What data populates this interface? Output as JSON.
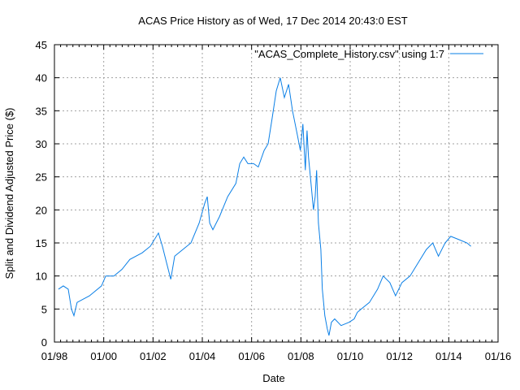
{
  "chart_data": {
    "type": "line",
    "title": "ACAS Price History as of Wed, 17 Dec 2014 20:43:0 EST",
    "xlabel": "Date",
    "ylabel": "Split and Dividend Adjusted Price ($)",
    "xlim": [
      1998,
      2016
    ],
    "ylim": [
      0,
      45
    ],
    "grid": true,
    "legend_position": "top-right",
    "x_ticks": [
      {
        "value": 1998,
        "label": "01/98"
      },
      {
        "value": 2000,
        "label": "01/00"
      },
      {
        "value": 2002,
        "label": "01/02"
      },
      {
        "value": 2004,
        "label": "01/04"
      },
      {
        "value": 2006,
        "label": "01/06"
      },
      {
        "value": 2008,
        "label": "01/08"
      },
      {
        "value": 2010,
        "label": "01/10"
      },
      {
        "value": 2012,
        "label": "01/12"
      },
      {
        "value": 2014,
        "label": "01/14"
      },
      {
        "value": 2016,
        "label": "01/16"
      }
    ],
    "y_ticks": [
      {
        "value": 0,
        "label": "0"
      },
      {
        "value": 5,
        "label": "5"
      },
      {
        "value": 10,
        "label": "10"
      },
      {
        "value": 15,
        "label": "15"
      },
      {
        "value": 20,
        "label": "20"
      },
      {
        "value": 25,
        "label": "25"
      },
      {
        "value": 30,
        "label": "30"
      },
      {
        "value": 35,
        "label": "35"
      },
      {
        "value": 40,
        "label": "40"
      },
      {
        "value": 45,
        "label": "45"
      }
    ],
    "series": [
      {
        "name": "\"ACAS_Complete_History.csv\" using 1:7",
        "color": "#0a7fe6",
        "x": [
          1998.16,
          1998.36,
          1998.56,
          1998.69,
          1998.79,
          1998.92,
          1999.42,
          1999.91,
          2000.08,
          2000.41,
          2000.74,
          2001.06,
          2001.56,
          2001.89,
          2002.22,
          2002.38,
          2002.55,
          2002.72,
          2002.88,
          2003.21,
          2003.54,
          2003.87,
          2004.1,
          2004.2,
          2004.3,
          2004.43,
          2004.7,
          2005.03,
          2005.36,
          2005.52,
          2005.68,
          2005.85,
          2006.08,
          2006.27,
          2006.51,
          2006.67,
          2006.84,
          2007.0,
          2007.16,
          2007.33,
          2007.5,
          2007.66,
          2007.82,
          2007.98,
          2008.08,
          2008.18,
          2008.25,
          2008.31,
          2008.41,
          2008.51,
          2008.58,
          2008.64,
          2008.71,
          2008.81,
          2008.87,
          2008.97,
          2009.07,
          2009.14,
          2009.24,
          2009.37,
          2009.63,
          2009.96,
          2010.16,
          2010.29,
          2010.45,
          2010.78,
          2011.11,
          2011.34,
          2011.61,
          2011.84,
          2012.1,
          2012.43,
          2012.76,
          2013.09,
          2013.35,
          2013.58,
          2013.85,
          2014.08,
          2014.41,
          2014.74,
          2014.9
        ],
        "y": [
          8,
          8.5,
          8,
          5,
          4,
          6,
          7,
          8.5,
          10,
          10,
          11,
          12.5,
          13.5,
          14.5,
          16.5,
          14.5,
          12,
          9.5,
          13,
          14,
          15,
          18,
          21,
          22,
          18,
          17,
          19,
          22,
          24,
          27,
          28,
          27,
          27,
          26.5,
          29,
          30,
          34,
          38,
          40,
          37,
          39,
          35,
          32,
          29,
          33,
          26,
          32,
          28,
          24,
          20,
          22,
          26,
          18,
          14,
          8,
          4,
          2,
          1,
          3,
          3.5,
          2.5,
          3,
          3.5,
          4.5,
          5,
          6,
          8,
          10,
          9,
          7,
          9,
          10,
          12,
          14,
          15,
          13,
          15,
          16,
          15.5,
          15,
          14.5
        ]
      }
    ]
  }
}
